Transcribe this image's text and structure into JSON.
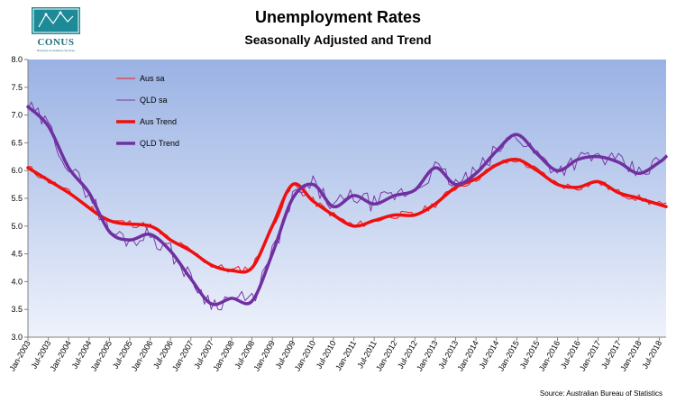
{
  "logo": {
    "name": "CONUS",
    "tagline": "Business Consultancy Services"
  },
  "chart_data": {
    "type": "line",
    "title": "Unemployment Rates",
    "subtitle": "Seasonally Adjusted and Trend",
    "source": "Source: Australian Bureau of Statistics",
    "ylim": [
      3.0,
      8.0
    ],
    "yticks": [
      "3.0",
      "3.5",
      "4.0",
      "4.5",
      "5.0",
      "5.5",
      "6.0",
      "6.5",
      "7.0",
      "7.5",
      "8.0"
    ],
    "x_start": "Jan-2003",
    "x_end": "Sep-2018",
    "xticks": [
      "Jan-2003",
      "Jul-2003",
      "Jan-2004",
      "Jul-2004",
      "Jan-2005",
      "Jul-2005",
      "Jan-2006",
      "Jul-2006",
      "Jan-2007",
      "Jul-2007",
      "Jan-2008",
      "Jul-2008",
      "Jan-2009",
      "Jul-2009",
      "Jan-2010",
      "Jul-2010",
      "Jan-2011",
      "Jul-2011",
      "Jan-2012",
      "Jul-2012",
      "Jan-2013",
      "Jul-2013",
      "Jan-2014",
      "Jul-2014",
      "Jan-2015",
      "Jul-2015",
      "Jan-2016",
      "Jul-2016",
      "Jan-2017",
      "Jul-2017",
      "Jan-2018",
      "Jul-2018"
    ],
    "grid": false,
    "legend_position": "top-left",
    "background": "#a3b9e6",
    "series": [
      {
        "name": "Aus sa",
        "color": "#ee1c1c",
        "width": 1,
        "kind": "sa",
        "trend_index": 2,
        "seed": 11,
        "amp": 0.07
      },
      {
        "name": "QLD sa",
        "color": "#7a3aa8",
        "width": 1,
        "kind": "sa",
        "trend_index": 3,
        "seed": 29,
        "amp": 0.16
      },
      {
        "name": "Aus Trend",
        "color": "#ee1010",
        "width": 3.5,
        "kind": "trend",
        "points": [
          [
            "Jan-2003",
            6.05
          ],
          [
            "Jan-2004",
            5.6
          ],
          [
            "Jan-2005",
            5.1
          ],
          [
            "Jan-2006",
            5.0
          ],
          [
            "Jul-2006",
            4.75
          ],
          [
            "Jan-2007",
            4.55
          ],
          [
            "Jul-2007",
            4.3
          ],
          [
            "Jan-2008",
            4.2
          ],
          [
            "Jul-2008",
            4.25
          ],
          [
            "Jan-2009",
            5.0
          ],
          [
            "Jul-2009",
            5.75
          ],
          [
            "Jan-2010",
            5.45
          ],
          [
            "Jul-2010",
            5.2
          ],
          [
            "Jan-2011",
            5.0
          ],
          [
            "Jul-2011",
            5.1
          ],
          [
            "Jan-2012",
            5.2
          ],
          [
            "Jul-2012",
            5.2
          ],
          [
            "Jan-2013",
            5.4
          ],
          [
            "Jul-2013",
            5.7
          ],
          [
            "Jan-2014",
            5.85
          ],
          [
            "Jul-2014",
            6.1
          ],
          [
            "Jan-2015",
            6.2
          ],
          [
            "Jul-2015",
            6.0
          ],
          [
            "Jan-2016",
            5.75
          ],
          [
            "Jul-2016",
            5.7
          ],
          [
            "Jan-2017",
            5.8
          ],
          [
            "Jul-2017",
            5.6
          ],
          [
            "Jan-2018",
            5.5
          ],
          [
            "Sep-2018",
            5.35
          ]
        ]
      },
      {
        "name": "QLD Trend",
        "color": "#7030a0",
        "width": 3.5,
        "kind": "trend",
        "points": [
          [
            "Jan-2003",
            7.15
          ],
          [
            "Jul-2003",
            6.8
          ],
          [
            "Jan-2004",
            6.05
          ],
          [
            "Jul-2004",
            5.6
          ],
          [
            "Jan-2005",
            4.9
          ],
          [
            "Jul-2005",
            4.75
          ],
          [
            "Jan-2006",
            4.85
          ],
          [
            "Jul-2006",
            4.55
          ],
          [
            "Jan-2007",
            4.05
          ],
          [
            "Jul-2007",
            3.6
          ],
          [
            "Jan-2008",
            3.7
          ],
          [
            "Jul-2008",
            3.65
          ],
          [
            "Jan-2009",
            4.5
          ],
          [
            "Jul-2009",
            5.5
          ],
          [
            "Jan-2010",
            5.75
          ],
          [
            "Jul-2010",
            5.35
          ],
          [
            "Jan-2011",
            5.55
          ],
          [
            "Jul-2011",
            5.4
          ],
          [
            "Jan-2012",
            5.55
          ],
          [
            "Jul-2012",
            5.65
          ],
          [
            "Jan-2013",
            6.05
          ],
          [
            "Jul-2013",
            5.75
          ],
          [
            "Jan-2014",
            5.95
          ],
          [
            "Jul-2014",
            6.35
          ],
          [
            "Jan-2015",
            6.65
          ],
          [
            "Jul-2015",
            6.3
          ],
          [
            "Jan-2016",
            6.0
          ],
          [
            "Jul-2016",
            6.2
          ],
          [
            "Jan-2017",
            6.25
          ],
          [
            "Jul-2017",
            6.15
          ],
          [
            "Jan-2018",
            5.95
          ],
          [
            "Jul-2018",
            6.15
          ],
          [
            "Sep-2018",
            6.25
          ]
        ]
      }
    ]
  }
}
